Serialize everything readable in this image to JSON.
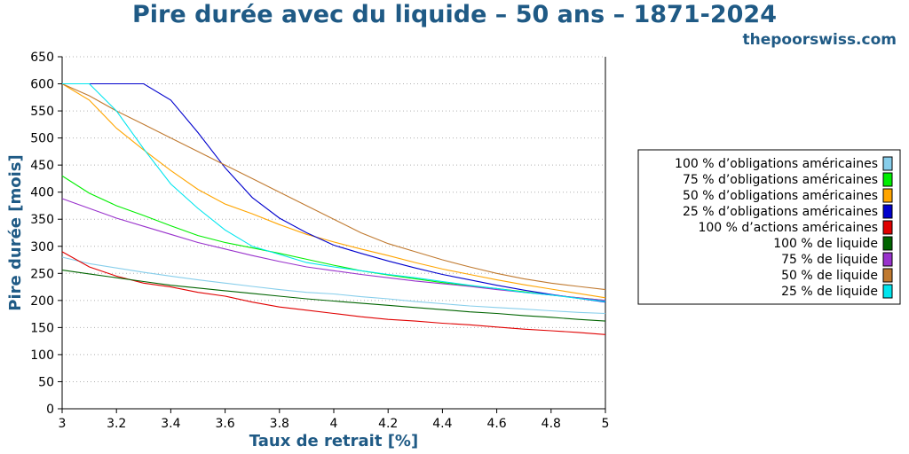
{
  "header": {
    "title": "Pire durée avec du liquide – 50 ans – 1871-2024",
    "site": "thepoorswiss.com"
  },
  "chart_data": {
    "type": "line",
    "title": "Pire durée avec du liquide – 50 ans – 1871-2024",
    "xlabel": "Taux de retrait [%]",
    "ylabel": "Pire durée [mois]",
    "xlim": [
      3,
      5
    ],
    "ylim": [
      0,
      650
    ],
    "x_ticks": [
      "3",
      "3.2",
      "3.4",
      "3.6",
      "3.8",
      "4",
      "4.2",
      "4.4",
      "4.6",
      "4.8",
      "5"
    ],
    "y_ticks": [
      "0",
      "50",
      "100",
      "150",
      "200",
      "250",
      "300",
      "350",
      "400",
      "450",
      "500",
      "550",
      "600",
      "650"
    ],
    "grid": "horizontal dotted",
    "legend_position": "right",
    "x": [
      3.0,
      3.1,
      3.2,
      3.3,
      3.4,
      3.5,
      3.6,
      3.7,
      3.8,
      3.9,
      4.0,
      4.1,
      4.2,
      4.3,
      4.4,
      4.5,
      4.6,
      4.7,
      4.8,
      4.9,
      5.0
    ],
    "series": [
      {
        "name": "100 % d’obligations américaines",
        "color": "#87ceeb",
        "values": [
          280,
          268,
          260,
          252,
          245,
          238,
          232,
          226,
          220,
          215,
          212,
          207,
          203,
          198,
          194,
          190,
          187,
          184,
          181,
          178,
          176
        ]
      },
      {
        "name": "75 % d’obligations américaines",
        "color": "#00ee00",
        "values": [
          430,
          398,
          375,
          357,
          338,
          320,
          307,
          297,
          287,
          276,
          265,
          255,
          247,
          240,
          233,
          227,
          222,
          216,
          210,
          205,
          200
        ]
      },
      {
        "name": "50 % d’obligations américaines",
        "color": "#ffa500",
        "values": [
          600,
          570,
          518,
          478,
          440,
          405,
          378,
          360,
          340,
          322,
          308,
          295,
          283,
          270,
          258,
          248,
          238,
          229,
          221,
          213,
          205
        ]
      },
      {
        "name": "25 % d’obligations américaines",
        "color": "#0000cd",
        "values": [
          600,
          600,
          600,
          600,
          570,
          510,
          445,
          390,
          352,
          325,
          302,
          287,
          273,
          260,
          248,
          238,
          228,
          219,
          211,
          204,
          197
        ]
      },
      {
        "name": "100 % d’actions américaines",
        "color": "#e00000",
        "values": [
          290,
          262,
          245,
          232,
          225,
          215,
          208,
          197,
          188,
          182,
          176,
          170,
          165,
          162,
          158,
          155,
          151,
          147,
          144,
          141,
          137
        ]
      },
      {
        "name": "100 % de liquide",
        "color": "#006400",
        "values": [
          256,
          249,
          242,
          235,
          228,
          223,
          218,
          213,
          208,
          203,
          199,
          195,
          191,
          187,
          183,
          179,
          176,
          172,
          169,
          165,
          162
        ]
      },
      {
        "name": "75 % de liquide",
        "color": "#9932cc",
        "values": [
          388,
          370,
          352,
          337,
          322,
          307,
          295,
          283,
          272,
          262,
          255,
          248,
          242,
          236,
          231,
          226,
          220,
          215,
          210,
          205,
          200
        ]
      },
      {
        "name": "50 % de liquide",
        "color": "#c07a30",
        "values": [
          600,
          578,
          550,
          525,
          500,
          475,
          450,
          425,
          400,
          375,
          350,
          325,
          305,
          290,
          275,
          262,
          250,
          240,
          232,
          226,
          220
        ]
      },
      {
        "name": "25 % de liquide",
        "color": "#00e5ee",
        "values": [
          600,
          600,
          550,
          480,
          415,
          370,
          330,
          300,
          285,
          270,
          262,
          255,
          248,
          242,
          235,
          228,
          222,
          215,
          210,
          204,
          198
        ]
      }
    ]
  }
}
